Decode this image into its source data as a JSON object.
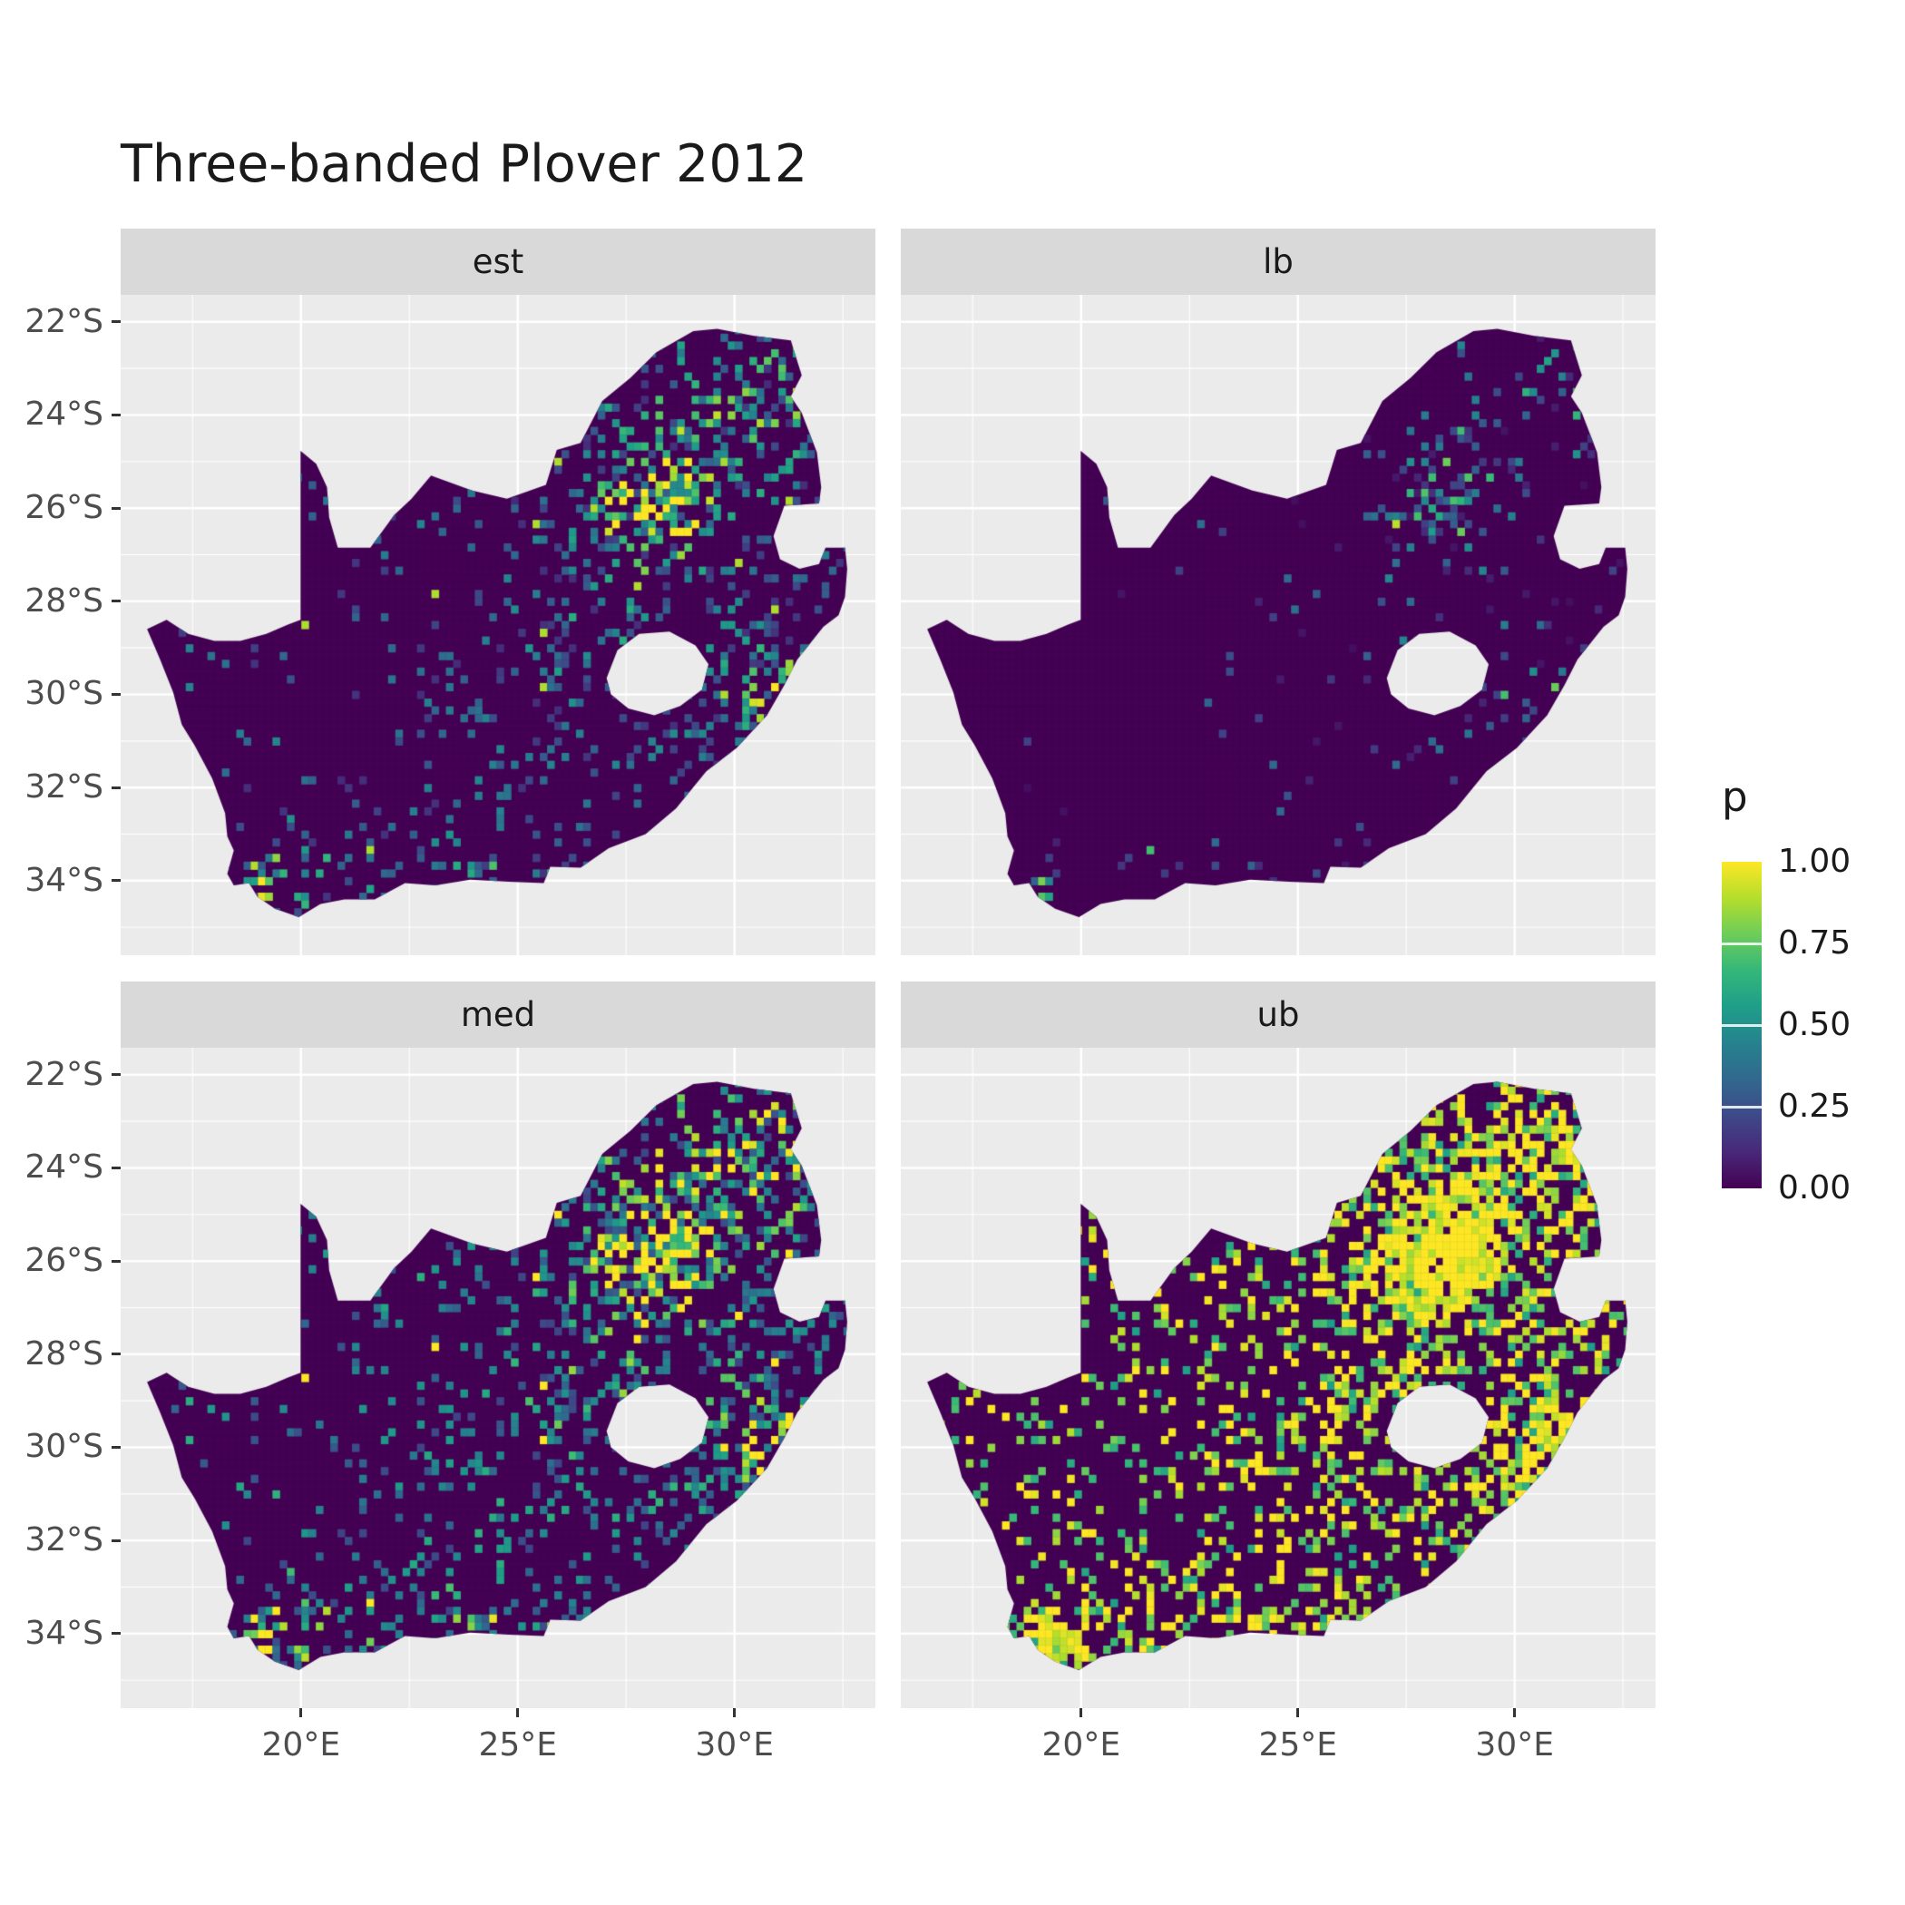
{
  "chart_data": {
    "type": "heatmap",
    "title": "Three-banded Plover 2012",
    "facets": [
      {
        "key": "est",
        "label": "est"
      },
      {
        "key": "lb",
        "label": "lb"
      },
      {
        "key": "med",
        "label": "med"
      },
      {
        "key": "ub",
        "label": "ub"
      }
    ],
    "x_axis": {
      "label": "",
      "ticks": [
        {
          "value": 20,
          "label": "20°E"
        },
        {
          "value": 25,
          "label": "25°E"
        },
        {
          "value": 30,
          "label": "30°E"
        }
      ],
      "range": [
        15.84,
        33.25
      ]
    },
    "y_axis": {
      "label": "",
      "ticks": [
        {
          "value": 22,
          "label": "22°S"
        },
        {
          "value": 24,
          "label": "24°S"
        },
        {
          "value": 26,
          "label": "26°S"
        },
        {
          "value": 28,
          "label": "28°S"
        },
        {
          "value": 30,
          "label": "30°S"
        },
        {
          "value": 32,
          "label": "32°S"
        },
        {
          "value": 34,
          "label": "34°S"
        }
      ],
      "range": [
        21.42,
        35.6
      ],
      "orientation": "degrees south, increasing downward"
    },
    "legend": {
      "title": "p",
      "ticks": [
        {
          "value": 1.0,
          "label": "1.00"
        },
        {
          "value": 0.75,
          "label": "0.75"
        },
        {
          "value": 0.5,
          "label": "0.50"
        },
        {
          "value": 0.25,
          "label": "0.25"
        },
        {
          "value": 0.0,
          "label": "0.00"
        }
      ],
      "range": [
        0,
        1
      ],
      "palette": "viridis",
      "position": "right",
      "palette_hex": [
        "#440154",
        "#482878",
        "#3e4989",
        "#31688e",
        "#26828e",
        "#1f9e89",
        "#35b779",
        "#6dcd59",
        "#b4de2c",
        "#fde725"
      ],
      "palette_rgb": [
        [
          68,
          1,
          84
        ],
        [
          72,
          40,
          120
        ],
        [
          62,
          74,
          137
        ],
        [
          49,
          104,
          142
        ],
        [
          38,
          130,
          142
        ],
        [
          31,
          158,
          137
        ],
        [
          53,
          183,
          121
        ],
        [
          109,
          205,
          89
        ],
        [
          180,
          222,
          44
        ],
        [
          253,
          231,
          37
        ]
      ]
    },
    "region": "South Africa (Lesotho shown as hole)",
    "grid": "white major gridlines at labeled breaks, thinner white minor gridlines between",
    "facet_summaries": {
      "est": "Estimated probability: mostly near 0 (dark purple); bright yellow-green hotspot around Gauteng (about 28°E, 26°S); scattered teal-green cells across the eastern half, the KwaZulu-Natal coast and the southwestern Cape",
      "lb": "Lower bound: almost entirely near 0; sparse faint teal speckles concentrated near Gauteng and the southwest Cape, with rare single yellow cells",
      "med": "Median: same spatial pattern as est with denser mid-value (0.25-0.6) speckling over the east and the south coast; yellow-green core at Gauteng",
      "ub": "Upper bound: extensive high values (0.75-1.0, yellow) over Gauteng/Mpumalanga, the KwaZulu-Natal coastal belt, Limpopo and the southwestern Cape; scattered yellow cells across the otherwise dark interior"
    },
    "map": {
      "outline": [
        [
          16.45,
          28.6
        ],
        [
          16.9,
          28.4
        ],
        [
          17.4,
          28.7
        ],
        [
          18.0,
          28.85
        ],
        [
          18.6,
          28.85
        ],
        [
          19.2,
          28.7
        ],
        [
          19.7,
          28.5
        ],
        [
          19.99,
          28.4
        ],
        [
          19.99,
          24.77
        ],
        [
          20.35,
          25.05
        ],
        [
          20.6,
          25.55
        ],
        [
          20.65,
          26.2
        ],
        [
          20.85,
          26.85
        ],
        [
          21.6,
          26.85
        ],
        [
          22.15,
          26.15
        ],
        [
          22.55,
          25.8
        ],
        [
          23.0,
          25.3
        ],
        [
          23.95,
          25.62
        ],
        [
          24.75,
          25.8
        ],
        [
          25.65,
          25.5
        ],
        [
          25.9,
          24.75
        ],
        [
          26.45,
          24.6
        ],
        [
          26.95,
          23.7
        ],
        [
          27.6,
          23.2
        ],
        [
          28.2,
          22.65
        ],
        [
          29.05,
          22.2
        ],
        [
          29.6,
          22.15
        ],
        [
          30.45,
          22.3
        ],
        [
          31.3,
          22.4
        ],
        [
          31.55,
          23.15
        ],
        [
          31.3,
          23.6
        ],
        [
          31.55,
          23.95
        ],
        [
          31.9,
          24.8
        ],
        [
          32.0,
          25.55
        ],
        [
          31.95,
          25.9
        ],
        [
          31.15,
          25.95
        ],
        [
          30.9,
          26.6
        ],
        [
          31.05,
          27.1
        ],
        [
          31.5,
          27.3
        ],
        [
          31.95,
          27.2
        ],
        [
          32.1,
          26.85
        ],
        [
          32.55,
          26.85
        ],
        [
          32.6,
          27.3
        ],
        [
          32.55,
          27.9
        ],
        [
          32.4,
          28.3
        ],
        [
          32.05,
          28.55
        ],
        [
          31.45,
          29.25
        ],
        [
          31.15,
          29.8
        ],
        [
          30.75,
          30.45
        ],
        [
          30.05,
          31.15
        ],
        [
          29.35,
          31.65
        ],
        [
          28.65,
          32.45
        ],
        [
          27.95,
          33.0
        ],
        [
          27.1,
          33.3
        ],
        [
          26.45,
          33.72
        ],
        [
          25.75,
          33.7
        ],
        [
          25.6,
          34.05
        ],
        [
          24.8,
          34.02
        ],
        [
          23.9,
          33.98
        ],
        [
          23.1,
          34.1
        ],
        [
          22.4,
          34.05
        ],
        [
          21.7,
          34.4
        ],
        [
          21.0,
          34.4
        ],
        [
          20.45,
          34.5
        ],
        [
          19.95,
          34.78
        ],
        [
          19.4,
          34.6
        ],
        [
          19.0,
          34.35
        ],
        [
          18.8,
          34.05
        ],
        [
          18.45,
          34.1
        ],
        [
          18.3,
          33.85
        ],
        [
          18.45,
          33.35
        ],
        [
          18.3,
          33.05
        ],
        [
          18.25,
          32.55
        ],
        [
          17.95,
          31.8
        ],
        [
          17.55,
          31.1
        ],
        [
          17.25,
          30.65
        ],
        [
          17.05,
          29.95
        ],
        [
          16.75,
          29.25
        ]
      ],
      "hole_lesotho": [
        [
          27.05,
          29.65
        ],
        [
          27.3,
          29.05
        ],
        [
          27.8,
          28.7
        ],
        [
          28.5,
          28.65
        ],
        [
          29.1,
          28.95
        ],
        [
          29.4,
          29.35
        ],
        [
          29.25,
          29.9
        ],
        [
          28.75,
          30.25
        ],
        [
          28.15,
          30.45
        ],
        [
          27.55,
          30.3
        ],
        [
          27.15,
          30.0
        ]
      ]
    },
    "render_model": {
      "seed": 20120,
      "cell_deg": 0.1667,
      "hotspots": [
        {
          "lon": 28.1,
          "lat": 26.1,
          "sx": 0.9,
          "sy": 0.8,
          "w": 1.0
        },
        {
          "lon": 29.3,
          "lat": 24.3,
          "sx": 1.6,
          "sy": 1.1,
          "w": 0.45
        },
        {
          "lon": 30.9,
          "lat": 29.9,
          "sx": 0.9,
          "sy": 0.8,
          "w": 0.55
        },
        {
          "lon": 19.3,
          "lat": 34.1,
          "sx": 1.0,
          "sy": 0.7,
          "w": 0.6
        },
        {
          "lon": 24.0,
          "lat": 33.9,
          "sx": 1.6,
          "sy": 0.55,
          "w": 0.3
        },
        {
          "lon": 31.8,
          "lat": 23.2,
          "sx": 0.9,
          "sy": 0.7,
          "w": 0.4
        },
        {
          "lon": 27.0,
          "lat": 29.0,
          "sx": 1.3,
          "sy": 1.0,
          "w": 0.22
        }
      ],
      "facet_models": {
        "est": {
          "base": 0.05,
          "hot": 0.55,
          "east": 0.1
        },
        "lb": {
          "gate_base": 0.18,
          "gate_hot": 0.5,
          "scale": 0.5
        },
        "med": {
          "boost": 1.3,
          "extra": 0.5
        },
        "ub": {
          "lift": 0.45,
          "gain": 1.8,
          "extra": 1.1
        }
      }
    }
  },
  "panel": {
    "bg": "#ebebeb",
    "grid_major": "#ffffff",
    "grid_minor": "#ffffff",
    "strip_bg": "#d9d9d9",
    "base_value_color": "#440154"
  },
  "text": {
    "title_color": "#1a1a1a",
    "axis_color": "#4d4d4d",
    "strip_color": "#1a1a1a",
    "legend_color": "#1a1a1a"
  }
}
